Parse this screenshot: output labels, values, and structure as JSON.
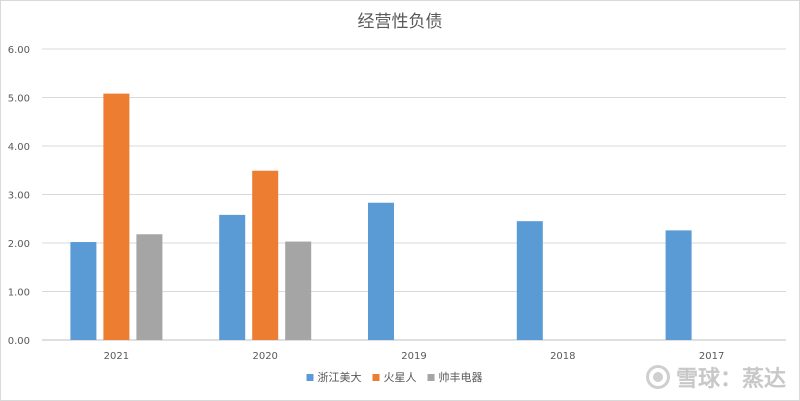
{
  "chart_data": {
    "type": "bar",
    "title": "经营性负债",
    "xlabel": "",
    "ylabel": "",
    "categories": [
      "2021",
      "2020",
      "2019",
      "2018",
      "2017"
    ],
    "series": [
      {
        "name": "浙江美大",
        "color": "#5b9bd5",
        "values": [
          2.02,
          2.58,
          2.83,
          2.45,
          2.26
        ]
      },
      {
        "name": "火星人",
        "color": "#ed7d31",
        "values": [
          5.08,
          3.49,
          null,
          null,
          null
        ]
      },
      {
        "name": "帅丰电器",
        "color": "#a5a5a5",
        "values": [
          2.18,
          2.03,
          null,
          null,
          null
        ]
      }
    ],
    "ylim": [
      0,
      6
    ],
    "yticks": [
      "0.00",
      "1.00",
      "2.00",
      "3.00",
      "4.00",
      "5.00",
      "6.00"
    ],
    "grid": true,
    "legend_position": "bottom"
  },
  "watermark": {
    "text": "雪球：蒸达",
    "icon": "xueqiu-logo-icon"
  }
}
